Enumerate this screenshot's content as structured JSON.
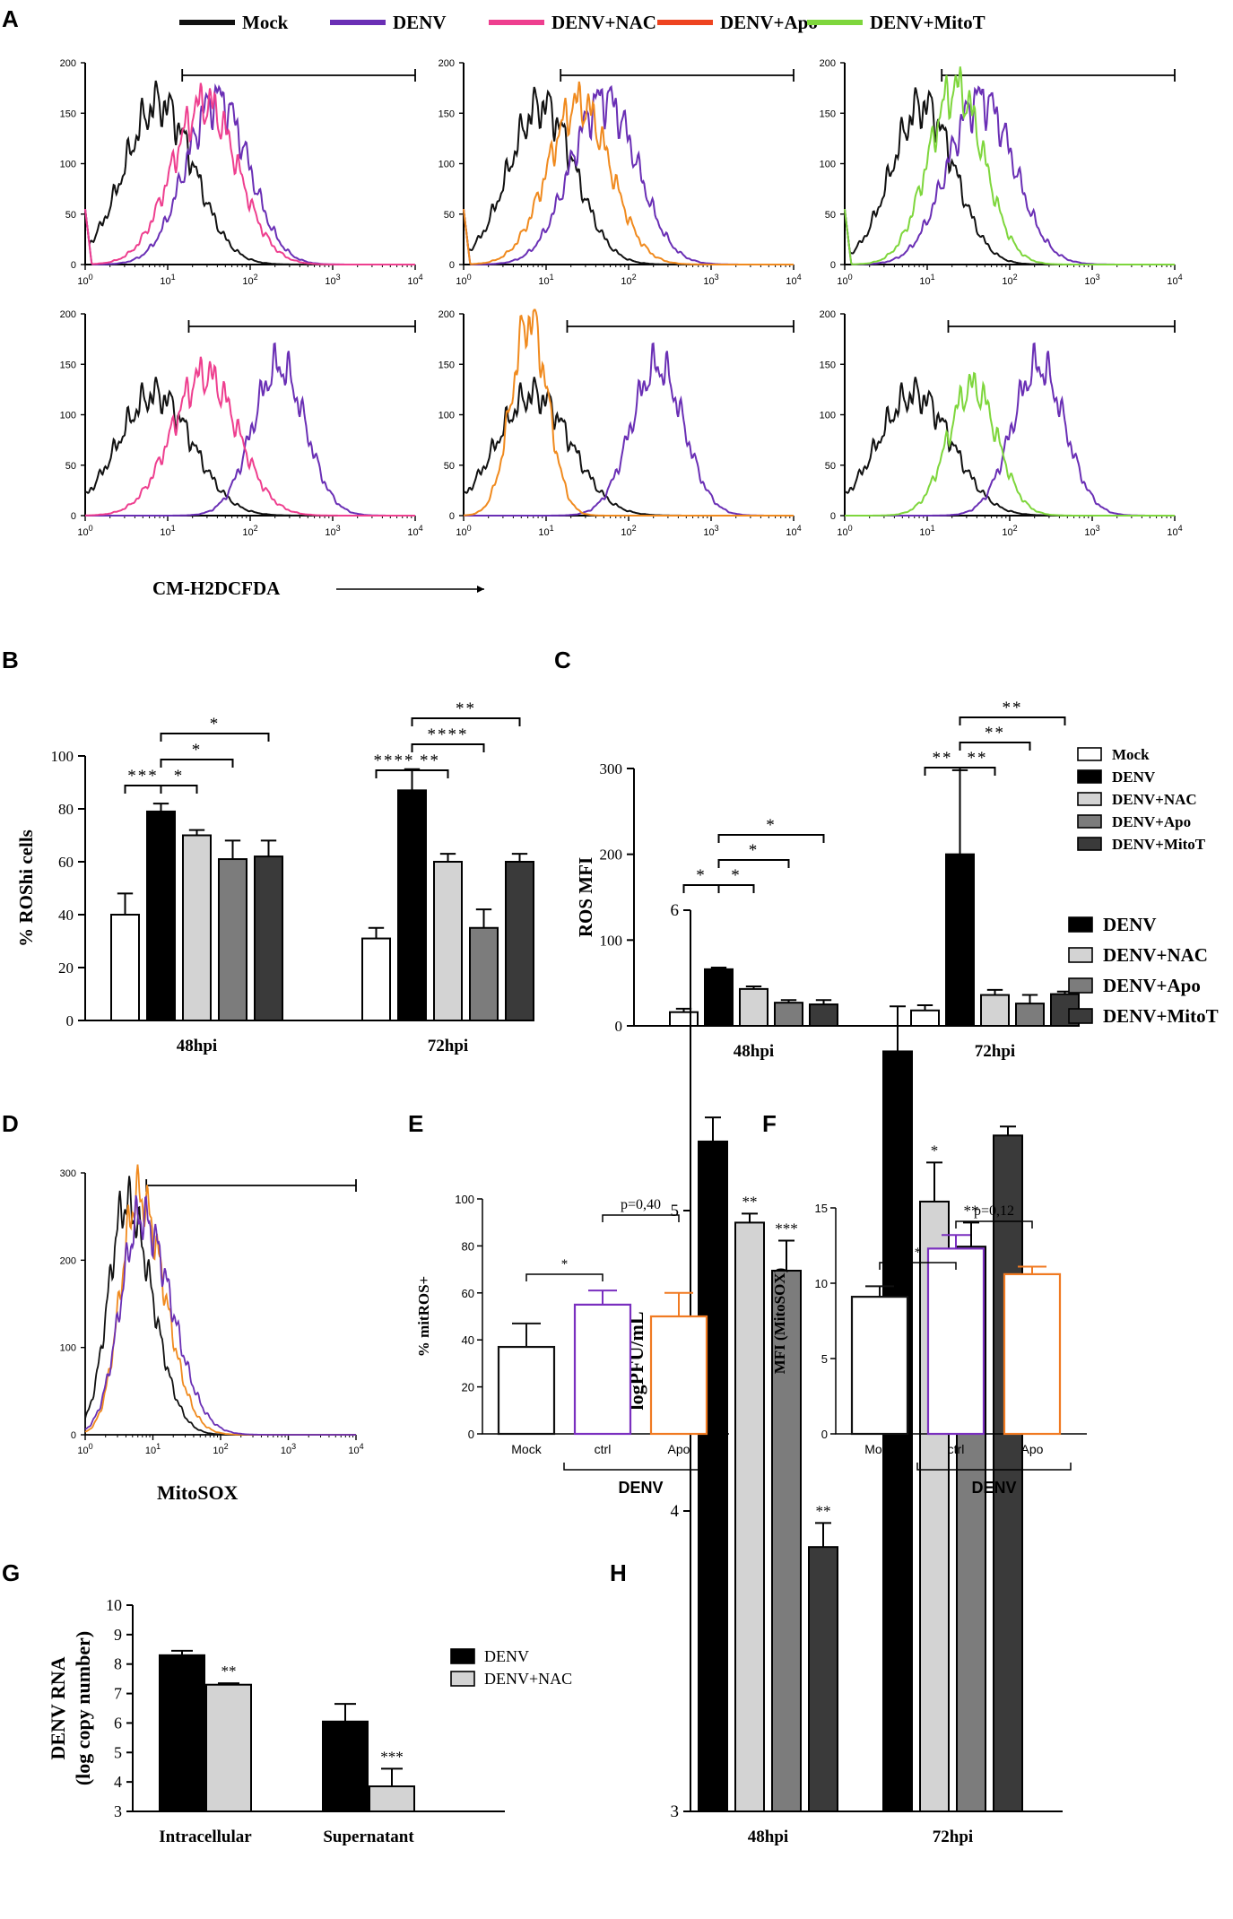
{
  "colors": {
    "Mock": "#111111",
    "DENV": "#6a2fb5",
    "DENV+NAC": "#ee3f8f",
    "DENV+Apo": "#f08a1e",
    "DENV+Apo_legend": "#ee4420",
    "DENV+MitoT": "#7ed63c"
  },
  "panel_letters": [
    "A",
    "B",
    "C",
    "D",
    "E",
    "F",
    "G",
    "H"
  ],
  "chart_data": [
    {
      "id": "A",
      "type": "histogram",
      "legend": [
        "Mock",
        "DENV",
        "DENV+NAC",
        "DENV+Apo",
        "DENV+MitoT"
      ],
      "xlabel": "CM-H2DCFDA",
      "x_scale": "log10",
      "x_ticks": [
        "10^0",
        "10^1",
        "10^2",
        "10^3",
        "10^4"
      ],
      "panels": [
        {
          "row": 1,
          "col": 1,
          "ylim": [
            0,
            200
          ],
          "yticks": [
            0,
            50,
            100,
            150,
            200
          ],
          "gate_from": 15,
          "series": [
            {
              "name": "Mock",
              "center": 0.9,
              "width": 0.42,
              "peak": 160
            },
            {
              "name": "DENV",
              "center": 1.6,
              "width": 0.38,
              "peak": 165
            },
            {
              "name": "DENV+NAC",
              "center": 1.45,
              "width": 0.4,
              "peak": 160
            }
          ]
        },
        {
          "row": 1,
          "col": 2,
          "ylim": [
            0,
            200
          ],
          "yticks": [
            0,
            50,
            100,
            150,
            200
          ],
          "gate_from": 15,
          "series": [
            {
              "name": "Mock",
              "center": 0.95,
              "width": 0.4,
              "peak": 158
            },
            {
              "name": "DENV",
              "center": 1.7,
              "width": 0.4,
              "peak": 165
            },
            {
              "name": "DENV+Apo",
              "center": 1.4,
              "width": 0.38,
              "peak": 160
            }
          ]
        },
        {
          "row": 1,
          "col": 3,
          "ylim": [
            0,
            200
          ],
          "yticks": [
            0,
            50,
            100,
            150,
            200
          ],
          "gate_from": 15,
          "series": [
            {
              "name": "Mock",
              "center": 0.95,
              "width": 0.38,
              "peak": 158
            },
            {
              "name": "DENV",
              "center": 1.65,
              "width": 0.4,
              "peak": 165
            },
            {
              "name": "DENV+MitoT",
              "center": 1.35,
              "width": 0.34,
              "peak": 175
            }
          ]
        },
        {
          "row": 2,
          "col": 1,
          "ylim": [
            0,
            200
          ],
          "yticks": [
            0,
            50,
            100,
            150,
            200
          ],
          "gate_from": 18,
          "series": [
            {
              "name": "Mock",
              "center": 0.85,
              "width": 0.45,
              "peak": 120
            },
            {
              "name": "DENV",
              "center": 2.35,
              "width": 0.32,
              "peak": 148
            },
            {
              "name": "DENV+NAC",
              "center": 1.45,
              "width": 0.4,
              "peak": 140
            }
          ]
        },
        {
          "row": 2,
          "col": 2,
          "ylim": [
            0,
            200
          ],
          "yticks": [
            0,
            50,
            100,
            150,
            200
          ],
          "gate_from": 18,
          "series": [
            {
              "name": "Mock",
              "center": 0.85,
              "width": 0.45,
              "peak": 120
            },
            {
              "name": "DENV",
              "center": 2.35,
              "width": 0.32,
              "peak": 148
            },
            {
              "name": "DENV+Apo",
              "center": 0.8,
              "width": 0.22,
              "peak": 195
            }
          ]
        },
        {
          "row": 2,
          "col": 3,
          "ylim": [
            0,
            200
          ],
          "yticks": [
            0,
            50,
            100,
            150,
            200
          ],
          "gate_from": 18,
          "series": [
            {
              "name": "Mock",
              "center": 0.85,
              "width": 0.45,
              "peak": 120
            },
            {
              "name": "DENV",
              "center": 2.35,
              "width": 0.32,
              "peak": 148
            },
            {
              "name": "DENV+MitoT",
              "center": 1.55,
              "width": 0.3,
              "peak": 128
            }
          ]
        }
      ]
    },
    {
      "id": "B",
      "type": "bar",
      "ylabel": "% ROShi cells",
      "ylim": [
        0,
        100
      ],
      "yticks": [
        0,
        20,
        40,
        60,
        80,
        100
      ],
      "categories": [
        "48hpi",
        "72hpi"
      ],
      "series": [
        {
          "name": "Mock",
          "values": [
            40,
            31
          ],
          "errors": [
            8,
            4
          ]
        },
        {
          "name": "DENV",
          "values": [
            79,
            87
          ],
          "errors": [
            3,
            8
          ]
        },
        {
          "name": "DENV+NAC",
          "values": [
            70,
            60
          ],
          "errors": [
            2,
            3
          ]
        },
        {
          "name": "DENV+Apo",
          "values": [
            61,
            35
          ],
          "errors": [
            7,
            7
          ]
        },
        {
          "name": "DENV+MitoT",
          "values": [
            62,
            60
          ],
          "errors": [
            6,
            3
          ]
        }
      ],
      "significance": [
        {
          "label": "***",
          "group": 0,
          "from": 0,
          "to": 1,
          "level": 1
        },
        {
          "label": "*",
          "group": 0,
          "from": 1,
          "to": 2,
          "level": 1
        },
        {
          "label": "*",
          "group": 0,
          "from": 1,
          "to": 3,
          "level": 2
        },
        {
          "label": "*",
          "group": 0,
          "from": 1,
          "to": 4,
          "level": 3
        },
        {
          "label": "****",
          "group": 1,
          "from": 0,
          "to": 1,
          "level": 1
        },
        {
          "label": "**",
          "group": 1,
          "from": 1,
          "to": 2,
          "level": 1
        },
        {
          "label": "****",
          "group": 1,
          "from": 1,
          "to": 3,
          "level": 2
        },
        {
          "label": "**",
          "group": 1,
          "from": 1,
          "to": 4,
          "level": 3
        }
      ]
    },
    {
      "id": "C",
      "type": "bar",
      "ylabel": "ROS MFI",
      "ylim": [
        0,
        300
      ],
      "yticks": [
        0,
        100,
        200,
        300
      ],
      "categories": [
        "48hpi",
        "72hpi"
      ],
      "legend": [
        "Mock",
        "DENV",
        "DENV+NAC",
        "DENV+Apo",
        "DENV+MitoT"
      ],
      "series": [
        {
          "name": "Mock",
          "values": [
            16,
            18
          ],
          "errors": [
            4,
            6
          ]
        },
        {
          "name": "DENV",
          "values": [
            66,
            200
          ],
          "errors": [
            2,
            98
          ]
        },
        {
          "name": "DENV+NAC",
          "values": [
            43,
            36
          ],
          "errors": [
            3,
            6
          ]
        },
        {
          "name": "DENV+Apo",
          "values": [
            27,
            26
          ],
          "errors": [
            3,
            10
          ]
        },
        {
          "name": "DENV+MitoT",
          "values": [
            25,
            37
          ],
          "errors": [
            5,
            3
          ]
        }
      ],
      "significance": [
        {
          "label": "*",
          "group": 0,
          "from": 0,
          "to": 1,
          "level": 1
        },
        {
          "label": "*",
          "group": 0,
          "from": 1,
          "to": 2,
          "level": 1
        },
        {
          "label": "*",
          "group": 0,
          "from": 1,
          "to": 3,
          "level": 2
        },
        {
          "label": "*",
          "group": 0,
          "from": 1,
          "to": 4,
          "level": 3
        },
        {
          "label": "**",
          "group": 1,
          "from": 0,
          "to": 1,
          "level": 1
        },
        {
          "label": "**",
          "group": 1,
          "from": 1,
          "to": 2,
          "level": 1
        },
        {
          "label": "**",
          "group": 1,
          "from": 1,
          "to": 3,
          "level": 2
        },
        {
          "label": "**",
          "group": 1,
          "from": 1,
          "to": 4,
          "level": 3
        }
      ]
    },
    {
      "id": "D",
      "type": "histogram",
      "xlabel": "MitoSOX",
      "x_scale": "log10",
      "x_ticks": [
        "10^0",
        "10^1",
        "10^2",
        "10^3",
        "10^4"
      ],
      "ylim": [
        0,
        300
      ],
      "yticks": [
        0,
        100,
        200,
        300
      ],
      "gate_from": 8,
      "series": [
        {
          "name": "Mock",
          "center": 0.6,
          "width": 0.26,
          "peak": 265
        },
        {
          "name": "DENV+Apo",
          "center": 0.78,
          "width": 0.26,
          "peak": 275
        },
        {
          "name": "DENV",
          "center": 0.82,
          "width": 0.3,
          "peak": 250
        }
      ]
    },
    {
      "id": "E",
      "type": "bar",
      "ylabel": "% mitROS+",
      "ylim": [
        0,
        100
      ],
      "yticks": [
        0,
        20,
        40,
        60,
        80,
        100
      ],
      "categories": [
        "Mock",
        "ctrl",
        "Apo"
      ],
      "group_label": "DENV",
      "values": [
        37,
        55,
        50
      ],
      "errors": [
        10,
        6,
        10
      ],
      "outline_colors": [
        "#111111",
        "#7a2fbf",
        "#f07a22"
      ],
      "significance": [
        {
          "label": "*",
          "from": 0,
          "to": 1
        },
        {
          "label": "p=0,40",
          "from": 1,
          "to": 2
        }
      ]
    },
    {
      "id": "F",
      "type": "bar",
      "ylabel": "MFI (MitoSOX)",
      "ylim": [
        0,
        15
      ],
      "yticks": [
        0,
        5,
        10,
        15
      ],
      "categories": [
        "Mock",
        "ctrl",
        "Apo"
      ],
      "group_label": "DENV",
      "values": [
        9.1,
        12.3,
        10.6
      ],
      "errors": [
        0.7,
        0.9,
        0.5
      ],
      "outline_colors": [
        "#111111",
        "#7a2fbf",
        "#f07a22"
      ],
      "significance": [
        {
          "label": "*",
          "from": 0,
          "to": 1
        },
        {
          "label": "p=0,12",
          "from": 1,
          "to": 2
        }
      ]
    },
    {
      "id": "G",
      "type": "bar",
      "ylabel_lines": [
        "DENV RNA",
        "(log copy number)"
      ],
      "ylim": [
        3,
        10
      ],
      "yticks": [
        3,
        4,
        5,
        6,
        7,
        8,
        9,
        10
      ],
      "categories": [
        "Intracellular",
        "Supernatant"
      ],
      "legend": [
        "DENV",
        "DENV+NAC"
      ],
      "series": [
        {
          "name": "DENV",
          "values": [
            8.3,
            6.05
          ],
          "errors": [
            0.15,
            0.6
          ]
        },
        {
          "name": "DENV+NAC",
          "values": [
            7.3,
            3.85
          ],
          "errors": [
            0.05,
            0.6
          ]
        }
      ],
      "stars": [
        {
          "series": 1,
          "group": 0,
          "label": "**"
        },
        {
          "series": 1,
          "group": 1,
          "label": "***"
        }
      ]
    },
    {
      "id": "H",
      "type": "bar",
      "ylabel": "logPFU/mL",
      "ylim": [
        3,
        6
      ],
      "yticks": [
        3,
        4,
        5,
        6
      ],
      "categories": [
        "48hpi",
        "72hpi"
      ],
      "legend": [
        "DENV",
        "DENV+NAC",
        "DENV+Apo",
        "DENV+MitoT"
      ],
      "series": [
        {
          "name": "DENV",
          "values": [
            5.23,
            5.53
          ],
          "errors": [
            0.08,
            0.15
          ]
        },
        {
          "name": "DENV+NAC",
          "values": [
            4.96,
            5.03
          ],
          "errors": [
            0.03,
            0.13
          ]
        },
        {
          "name": "DENV+Apo",
          "values": [
            4.8,
            4.88
          ],
          "errors": [
            0.1,
            0.08
          ]
        },
        {
          "name": "DENV+MitoT",
          "values": [
            3.88,
            5.25
          ],
          "errors": [
            0.08,
            0.03
          ]
        }
      ],
      "stars": [
        {
          "series": 1,
          "group": 0,
          "label": "**"
        },
        {
          "series": 2,
          "group": 0,
          "label": "***"
        },
        {
          "series": 3,
          "group": 0,
          "label": "**"
        },
        {
          "series": 1,
          "group": 1,
          "label": "*"
        },
        {
          "series": 2,
          "group": 1,
          "label": "**"
        }
      ]
    }
  ]
}
